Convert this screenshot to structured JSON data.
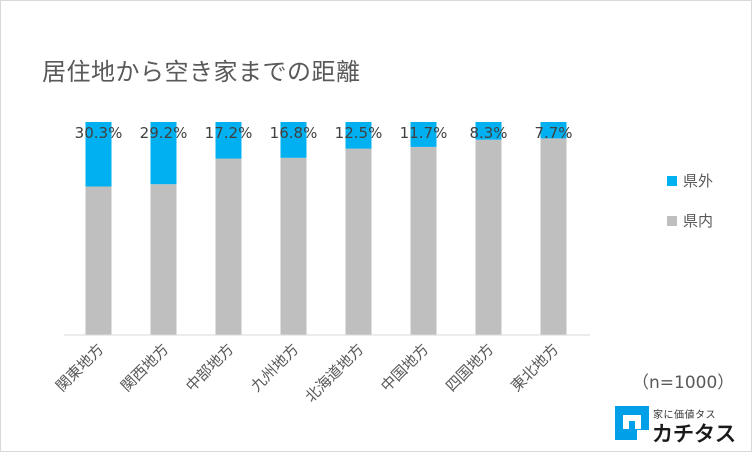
{
  "chart_data": {
    "type": "bar",
    "stacked": true,
    "orientation": "vertical",
    "percent_stacked": true,
    "title": "居住地から空き家までの距離",
    "categories": [
      "関東地方",
      "関西地方",
      "中部地方",
      "九州地方",
      "北海道地方",
      "中国地方",
      "四国地方",
      "東北地方"
    ],
    "series": [
      {
        "name": "県内",
        "color": "#bfbfbf",
        "values": [
          69.7,
          70.8,
          82.8,
          83.2,
          87.5,
          88.3,
          91.7,
          92.3
        ]
      },
      {
        "name": "県外",
        "color": "#00b0f0",
        "values": [
          30.3,
          29.2,
          17.2,
          16.8,
          12.5,
          11.7,
          8.3,
          7.7
        ]
      }
    ],
    "data_labels": [
      "30.3%",
      "29.2%",
      "17.2%",
      "16.8%",
      "12.5%",
      "11.7%",
      "8.3%",
      "7.7%"
    ],
    "ylim": [
      0,
      100
    ],
    "legend_position": "right",
    "grid": false
  },
  "note": "（n=1000）",
  "logo": {
    "tagline": "家に価値タス",
    "name": "カチタス"
  }
}
